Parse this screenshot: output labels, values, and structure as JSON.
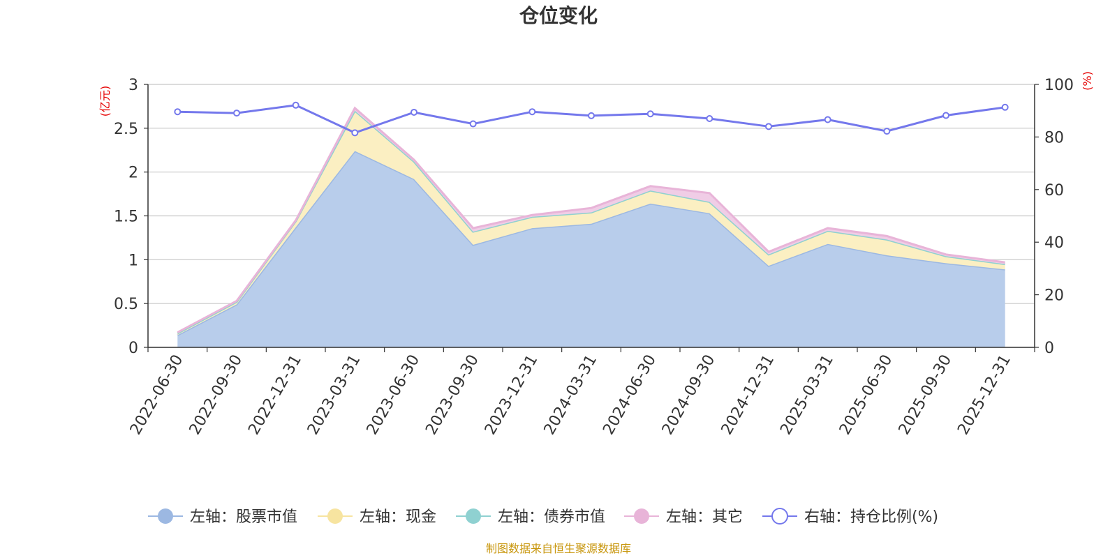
{
  "chart_data": {
    "type": "area",
    "title": "仓位变化",
    "left_unit": "(亿元)",
    "right_unit": "(%)",
    "categories": [
      "2022-06-30",
      "2022-09-30",
      "2022-12-31",
      "2023-03-31",
      "2023-06-30",
      "2023-09-30",
      "2023-12-31",
      "2024-03-31",
      "2024-06-30",
      "2024-09-30",
      "2024-12-31",
      "2025-03-31",
      "2025-06-30",
      "2025-09-30",
      "2025-12-31"
    ],
    "left_axis": {
      "min": 0,
      "max": 3,
      "ticks": [
        "0",
        "0.5",
        "1",
        "1.5",
        "2",
        "2.5",
        "3"
      ]
    },
    "right_axis": {
      "min": 0,
      "max": 100,
      "ticks": [
        "0",
        "20",
        "40",
        "60",
        "80",
        "100"
      ]
    },
    "series": [
      {
        "name": "左轴：股票市值",
        "color": "#9cb8e2",
        "fill": "#b8cdeb",
        "axis": "left",
        "stack": true,
        "values": [
          0.14,
          0.49,
          1.37,
          2.24,
          1.92,
          1.17,
          1.36,
          1.41,
          1.64,
          1.53,
          0.93,
          1.18,
          1.05,
          0.96,
          0.89
        ]
      },
      {
        "name": "左轴：现金",
        "color": "#f7e4a0",
        "fill": "#fbefc2",
        "axis": "left",
        "stack": true,
        "values": [
          0.02,
          0.03,
          0.07,
          0.46,
          0.2,
          0.15,
          0.13,
          0.13,
          0.15,
          0.13,
          0.13,
          0.15,
          0.18,
          0.08,
          0.06
        ]
      },
      {
        "name": "左轴：债券市值",
        "color": "#8fd1d1",
        "fill": "#bfe6e6",
        "axis": "left",
        "stack": true,
        "values": [
          0,
          0,
          0,
          0,
          0,
          0,
          0,
          0,
          0,
          0,
          0,
          0,
          0,
          0,
          0
        ]
      },
      {
        "name": "左轴：其它",
        "color": "#e8b4d8",
        "fill": "#f0cde6",
        "axis": "left",
        "stack": true,
        "values": [
          0.01,
          0.01,
          0.01,
          0.03,
          0.02,
          0.04,
          0.02,
          0.05,
          0.05,
          0.1,
          0.03,
          0.03,
          0.04,
          0.02,
          0.02
        ]
      },
      {
        "name": "右轴：持仓比例(%)",
        "color": "#7478ec",
        "axis": "right",
        "stack": false,
        "values": [
          89.6,
          89.1,
          92.1,
          81.6,
          89.4,
          85.0,
          89.6,
          88.1,
          88.8,
          87.0,
          84.0,
          86.6,
          82.2,
          88.2,
          91.3
        ]
      }
    ],
    "legend_position": "bottom",
    "grid": true
  },
  "source_note": "制图数据来自恒生聚源数据库"
}
